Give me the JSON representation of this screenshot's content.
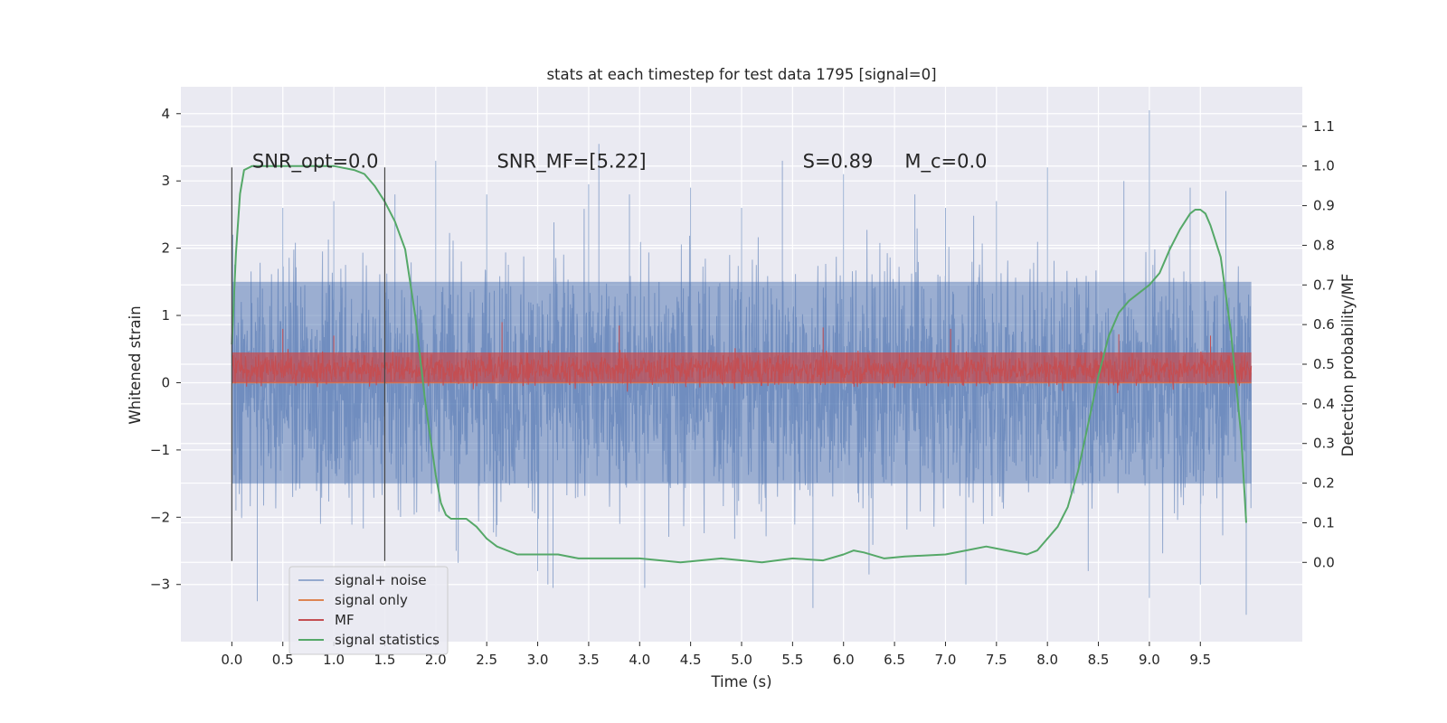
{
  "chart_data": {
    "type": "line",
    "title": "stats at each timestep for test data 1795 [signal=0]",
    "xlabel": "Time (s)",
    "ylabel": "Whitened strain",
    "ylabel_right": "Detection probability/MF",
    "xlim": [
      -0.5,
      10.5
    ],
    "ylim": [
      -3.85,
      4.4
    ],
    "ylim_right": [
      -0.2,
      1.2
    ],
    "x_ticks": [
      "0.0",
      "0.5",
      "1.0",
      "1.5",
      "2.0",
      "2.5",
      "3.0",
      "3.5",
      "4.0",
      "4.5",
      "5.0",
      "5.5",
      "6.0",
      "6.5",
      "7.0",
      "7.5",
      "8.0",
      "8.5",
      "9.0",
      "9.5"
    ],
    "y_ticks": [
      "−3",
      "−2",
      "−1",
      "0",
      "1",
      "2",
      "3",
      "4"
    ],
    "y_ticks_right": [
      "0.0",
      "0.1",
      "0.2",
      "0.3",
      "0.4",
      "0.5",
      "0.6",
      "0.7",
      "0.8",
      "0.9",
      "1.0",
      "1.1"
    ],
    "grid": true,
    "legend_placement": "lower-left",
    "annotations": [
      {
        "label": "SNR_opt=0.0",
        "x": 0.2,
        "y": 3.2
      },
      {
        "label": "SNR_MF=[5.22]",
        "x": 2.6,
        "y": 3.2
      },
      {
        "label": "S=0.89",
        "x": 5.6,
        "y": 3.2
      },
      {
        "label": "M_c=0.0",
        "x": 6.6,
        "y": 3.2
      }
    ],
    "window_markers": [
      {
        "x": 0.0,
        "y_top": 3.2,
        "y_bottom": -2.65
      },
      {
        "x": 1.5,
        "y_top": 3.2,
        "y_bottom": -2.65
      }
    ],
    "series": [
      {
        "name": "signal+ noise",
        "color": "#4c72b0",
        "axis": "left",
        "style": "dense-noise",
        "x_range": [
          0.0,
          10.0
        ],
        "band_typical": [
          -1.5,
          1.5
        ],
        "spikes": [
          [
            0.01,
            2.2
          ],
          [
            0.04,
            -1.9
          ],
          [
            0.25,
            -3.25
          ],
          [
            0.5,
            2.6
          ],
          [
            1.0,
            2.7
          ],
          [
            1.6,
            2.8
          ],
          [
            2.0,
            3.3
          ],
          [
            2.2,
            -2.5
          ],
          [
            2.5,
            2.8
          ],
          [
            3.0,
            -2.8
          ],
          [
            3.1,
            -3.0
          ],
          [
            3.15,
            -3.05
          ],
          [
            3.5,
            2.95
          ],
          [
            3.6,
            3.55
          ],
          [
            3.9,
            2.8
          ],
          [
            4.05,
            -3.05
          ],
          [
            4.5,
            2.9
          ],
          [
            5.0,
            2.6
          ],
          [
            5.4,
            3.3
          ],
          [
            5.7,
            -3.35
          ],
          [
            6.0,
            3.1
          ],
          [
            6.25,
            -2.85
          ],
          [
            6.7,
            2.8
          ],
          [
            7.0,
            2.6
          ],
          [
            7.2,
            -3.0
          ],
          [
            7.5,
            2.7
          ],
          [
            8.0,
            3.2
          ],
          [
            8.4,
            -2.8
          ],
          [
            8.75,
            3.0
          ],
          [
            9.0,
            4.05
          ],
          [
            9.0,
            -3.2
          ],
          [
            9.4,
            2.9
          ],
          [
            9.5,
            -3.0
          ],
          [
            9.75,
            2.85
          ],
          [
            9.95,
            -3.45
          ]
        ]
      },
      {
        "name": "signal only",
        "color": "#dd8452",
        "axis": "left",
        "x": [
          0.0,
          10.0
        ],
        "y": [
          0.0,
          0.0
        ]
      },
      {
        "name": "MF",
        "color": "#c44e52",
        "axis": "left",
        "style": "dense-noise",
        "x_range": [
          0.0,
          10.0
        ],
        "baseline": 0.2,
        "band_typical": [
          0.0,
          0.45
        ],
        "spikes": [
          [
            0.5,
            0.8
          ],
          [
            1.0,
            0.7
          ],
          [
            2.65,
            0.9
          ],
          [
            3.8,
            0.85
          ],
          [
            5.8,
            0.82
          ],
          [
            7.05,
            0.8
          ],
          [
            8.7,
            0.72
          ],
          [
            9.6,
            0.7
          ]
        ]
      },
      {
        "name": "signal statistics",
        "color": "#55a868",
        "axis": "right",
        "x": [
          0.0,
          0.04,
          0.08,
          0.12,
          0.2,
          0.3,
          0.5,
          0.8,
          1.0,
          1.2,
          1.3,
          1.4,
          1.5,
          1.6,
          1.7,
          1.8,
          1.9,
          2.0,
          2.05,
          2.1,
          2.15,
          2.2,
          2.3,
          2.4,
          2.5,
          2.6,
          2.8,
          3.0,
          3.2,
          3.4,
          3.6,
          4.0,
          4.4,
          4.8,
          5.2,
          5.5,
          5.8,
          6.0,
          6.1,
          6.2,
          6.4,
          6.6,
          7.0,
          7.2,
          7.4,
          7.6,
          7.8,
          7.9,
          8.0,
          8.1,
          8.2,
          8.3,
          8.4,
          8.5,
          8.6,
          8.7,
          8.8,
          8.9,
          9.0,
          9.1,
          9.2,
          9.3,
          9.4,
          9.45,
          9.5,
          9.55,
          9.6,
          9.7,
          9.8,
          9.9,
          9.95
        ],
        "y": [
          0.55,
          0.78,
          0.93,
          0.99,
          1.0,
          1.0,
          1.0,
          1.0,
          1.0,
          0.99,
          0.98,
          0.95,
          0.91,
          0.86,
          0.79,
          0.62,
          0.4,
          0.22,
          0.15,
          0.12,
          0.11,
          0.11,
          0.11,
          0.09,
          0.06,
          0.04,
          0.02,
          0.02,
          0.02,
          0.01,
          0.01,
          0.01,
          0.0,
          0.01,
          0.0,
          0.01,
          0.005,
          0.02,
          0.03,
          0.025,
          0.01,
          0.015,
          0.02,
          0.03,
          0.04,
          0.03,
          0.02,
          0.03,
          0.06,
          0.09,
          0.14,
          0.23,
          0.35,
          0.47,
          0.57,
          0.63,
          0.66,
          0.68,
          0.7,
          0.73,
          0.79,
          0.84,
          0.88,
          0.89,
          0.89,
          0.88,
          0.85,
          0.77,
          0.58,
          0.32,
          0.1
        ]
      }
    ]
  }
}
